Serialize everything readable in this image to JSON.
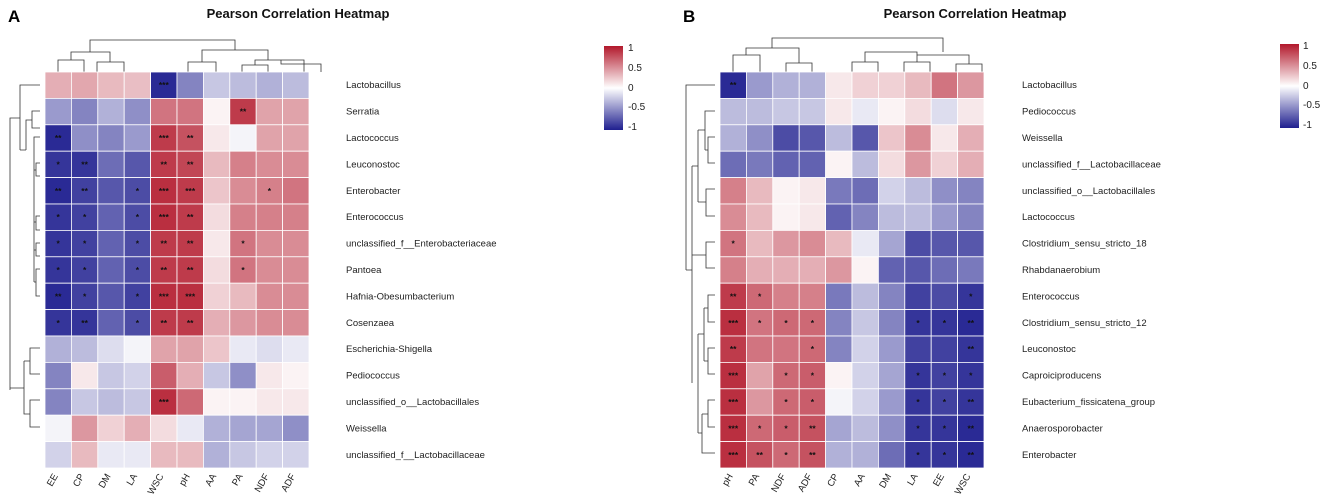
{
  "colors": {
    "low": "#1f1f8f",
    "mid": "#ffffff",
    "high": "#b2182b"
  },
  "chart_data": [
    {
      "type": "heatmap",
      "panel_label": "A",
      "title": "Pearson Correlation Heatmap",
      "columns": [
        "EE",
        "CP",
        "DM",
        "LA",
        "WSC",
        "pH",
        "AA",
        "PA",
        "NDF",
        "ADF"
      ],
      "rows": [
        "Lactobacillus",
        "Serratia",
        "Lactococcus",
        "Leuconostoc",
        "Enterobacter",
        "Enterococcus",
        "unclassified_f__Enterobacteriaceae",
        "Pantoea",
        "Hafnia-Obesumbacterium",
        "Cosenzaea",
        "Escherichia-Shigella",
        "Pediococcus",
        "unclassified_o__Lactobacillales",
        "Weissella",
        "unclassified_f__Lactobacillaceae"
      ],
      "values": [
        [
          0.35,
          0.38,
          0.3,
          0.28,
          -0.95,
          -0.55,
          -0.25,
          -0.3,
          -0.35,
          -0.3
        ],
        [
          -0.45,
          -0.55,
          -0.35,
          -0.5,
          0.6,
          0.6,
          0.05,
          0.85,
          0.4,
          0.4
        ],
        [
          -0.95,
          -0.5,
          -0.55,
          -0.45,
          0.85,
          0.75,
          0.1,
          -0.05,
          0.4,
          0.4
        ],
        [
          -0.9,
          -0.9,
          -0.65,
          -0.75,
          0.85,
          0.8,
          0.3,
          0.55,
          0.5,
          0.5
        ],
        [
          -0.95,
          -0.85,
          -0.75,
          -0.8,
          0.9,
          0.85,
          0.25,
          0.5,
          0.55,
          0.6
        ],
        [
          -0.9,
          -0.85,
          -0.7,
          -0.8,
          0.9,
          0.85,
          0.15,
          0.55,
          0.55,
          0.55
        ],
        [
          -0.9,
          -0.85,
          -0.7,
          -0.8,
          0.85,
          0.85,
          0.1,
          0.6,
          0.5,
          0.5
        ],
        [
          -0.9,
          -0.85,
          -0.7,
          -0.8,
          0.85,
          0.85,
          0.15,
          0.6,
          0.5,
          0.5
        ],
        [
          -0.95,
          -0.85,
          -0.75,
          -0.85,
          0.9,
          0.9,
          0.2,
          0.3,
          0.5,
          0.5
        ],
        [
          -0.9,
          -0.9,
          -0.7,
          -0.8,
          0.85,
          0.85,
          0.35,
          0.45,
          0.5,
          0.5
        ],
        [
          -0.35,
          -0.3,
          -0.15,
          -0.05,
          0.4,
          0.4,
          0.25,
          -0.1,
          -0.15,
          -0.1
        ],
        [
          -0.55,
          0.1,
          -0.25,
          -0.2,
          0.7,
          0.35,
          -0.25,
          -0.5,
          0.1,
          0.05
        ],
        [
          -0.55,
          -0.25,
          -0.3,
          -0.25,
          0.9,
          0.65,
          0.05,
          0.05,
          0.1,
          0.1
        ],
        [
          -0.05,
          0.45,
          0.2,
          0.35,
          0.15,
          -0.1,
          -0.35,
          -0.4,
          -0.4,
          -0.5
        ],
        [
          -0.2,
          0.3,
          -0.1,
          -0.1,
          0.3,
          0.3,
          -0.35,
          -0.25,
          -0.2,
          -0.2
        ]
      ],
      "stars": [
        [
          "",
          "",
          "",
          "",
          "***",
          "",
          "",
          "",
          "",
          ""
        ],
        [
          "",
          "",
          "",
          "",
          "",
          "",
          "",
          "**",
          "",
          ""
        ],
        [
          "**",
          "",
          "",
          "",
          "***",
          "**",
          "",
          "",
          "",
          ""
        ],
        [
          "*",
          "**",
          "",
          "",
          "**",
          "**",
          "",
          "",
          "",
          ""
        ],
        [
          "**",
          "**",
          "",
          "*",
          "***",
          "***",
          "",
          "",
          "*",
          ""
        ],
        [
          "*",
          "*",
          "",
          "*",
          "***",
          "**",
          "",
          "",
          "",
          ""
        ],
        [
          "*",
          "*",
          "",
          "*",
          "**",
          "**",
          "",
          "*",
          "",
          ""
        ],
        [
          "*",
          "*",
          "",
          "*",
          "**",
          "**",
          "",
          "*",
          "",
          ""
        ],
        [
          "**",
          "*",
          "",
          "*",
          "***",
          "***",
          "",
          "",
          "",
          ""
        ],
        [
          "*",
          "**",
          "",
          "*",
          "**",
          "**",
          "",
          "",
          "",
          ""
        ],
        [
          "",
          "",
          "",
          "",
          "",
          "",
          "",
          "",
          "",
          ""
        ],
        [
          "",
          "",
          "",
          "",
          "",
          "",
          "",
          "",
          "",
          ""
        ],
        [
          "",
          "",
          "",
          "",
          "***",
          "",
          "",
          "",
          "",
          ""
        ],
        [
          "",
          "",
          "",
          "",
          "",
          "",
          "",
          "",
          "",
          ""
        ],
        [
          "",
          "",
          "",
          "",
          "",
          "",
          "",
          "",
          "",
          ""
        ]
      ],
      "legend": {
        "ticks": [
          "1",
          "0.5",
          "0",
          "-0.5",
          "-1"
        ],
        "range": [
          -1,
          1
        ]
      }
    },
    {
      "type": "heatmap",
      "panel_label": "B",
      "title": "Pearson Correlation Heatmap",
      "columns": [
        "pH",
        "PA",
        "NDF",
        "ADF",
        "CP",
        "AA",
        "DM",
        "LA",
        "EE",
        "WSC"
      ],
      "rows": [
        "Lactobacillus",
        "Pediococcus",
        "Weissella",
        "unclassified_f__Lactobacillaceae",
        "unclassified_o__Lactobacillales",
        "Lactococcus",
        "Clostridium_sensu_stricto_18",
        "Rhabdanaerobium",
        "Enterococcus",
        "Clostridium_sensu_stricto_12",
        "Leuconostoc",
        "Caproiciproducens",
        "Eubacterium_fissicatena_group",
        "Anaerosporobacter",
        "Enterobacter"
      ],
      "values": [
        [
          -0.95,
          -0.45,
          -0.35,
          -0.35,
          0.1,
          0.2,
          0.2,
          0.3,
          0.6,
          0.45
        ],
        [
          -0.3,
          -0.3,
          -0.25,
          -0.25,
          0.1,
          -0.1,
          0.05,
          0.15,
          -0.15,
          0.1
        ],
        [
          -0.35,
          -0.5,
          -0.8,
          -0.75,
          -0.3,
          -0.75,
          0.25,
          0.5,
          0.1,
          0.35
        ],
        [
          -0.65,
          -0.6,
          -0.7,
          -0.7,
          0.05,
          -0.3,
          0.15,
          0.45,
          0.2,
          0.35
        ],
        [
          0.55,
          0.3,
          0.05,
          0.1,
          -0.6,
          -0.65,
          -0.2,
          -0.3,
          -0.5,
          -0.55
        ],
        [
          0.5,
          0.3,
          0.05,
          0.1,
          -0.7,
          -0.55,
          -0.3,
          -0.3,
          -0.45,
          -0.55
        ],
        [
          0.6,
          0.3,
          0.45,
          0.5,
          0.3,
          -0.1,
          -0.4,
          -0.8,
          -0.75,
          -0.75
        ],
        [
          0.55,
          0.35,
          0.35,
          0.35,
          0.45,
          0.05,
          -0.7,
          -0.75,
          -0.65,
          -0.6
        ],
        [
          0.85,
          0.65,
          0.55,
          0.55,
          -0.6,
          -0.3,
          -0.55,
          -0.85,
          -0.8,
          -0.9
        ],
        [
          0.9,
          0.6,
          0.65,
          0.65,
          -0.55,
          -0.25,
          -0.55,
          -0.9,
          -0.9,
          -0.95
        ],
        [
          0.85,
          0.6,
          0.6,
          0.65,
          -0.55,
          -0.2,
          -0.45,
          -0.85,
          -0.85,
          -0.9
        ],
        [
          0.9,
          0.4,
          0.65,
          0.7,
          0.05,
          -0.2,
          -0.4,
          -0.9,
          -0.85,
          -0.9
        ],
        [
          0.9,
          0.45,
          0.65,
          0.7,
          -0.05,
          -0.2,
          -0.45,
          -0.9,
          -0.85,
          -0.9
        ],
        [
          0.9,
          0.65,
          0.7,
          0.75,
          -0.4,
          -0.3,
          -0.5,
          -0.9,
          -0.9,
          -0.95
        ],
        [
          0.9,
          0.75,
          0.65,
          0.75,
          -0.35,
          -0.35,
          -0.65,
          -0.9,
          -0.9,
          -0.95
        ]
      ],
      "stars": [
        [
          "**",
          "",
          "",
          "",
          "",
          "",
          "",
          "",
          "",
          ""
        ],
        [
          "",
          "",
          "",
          "",
          "",
          "",
          "",
          "",
          "",
          ""
        ],
        [
          "",
          "",
          "",
          "",
          "",
          "",
          "",
          "",
          "",
          ""
        ],
        [
          "",
          "",
          "",
          "",
          "",
          "",
          "",
          "",
          "",
          ""
        ],
        [
          "",
          "",
          "",
          "",
          "",
          "",
          "",
          "",
          "",
          ""
        ],
        [
          "",
          "",
          "",
          "",
          "",
          "",
          "",
          "",
          "",
          ""
        ],
        [
          "*",
          "",
          "",
          "",
          "",
          "",
          "",
          "",
          "",
          ""
        ],
        [
          "",
          "",
          "",
          "",
          "",
          "",
          "",
          "",
          "",
          ""
        ],
        [
          "**",
          "*",
          "",
          "",
          "",
          "",
          "",
          "",
          "",
          "*"
        ],
        [
          "***",
          "*",
          "*",
          "*",
          "",
          "",
          "",
          "*",
          "*",
          "**"
        ],
        [
          "**",
          "",
          "",
          "*",
          "",
          "",
          "",
          "",
          "",
          "**"
        ],
        [
          "***",
          "",
          "*",
          "*",
          "",
          "",
          "",
          "*",
          "*",
          "*"
        ],
        [
          "***",
          "",
          "*",
          "*",
          "",
          "",
          "",
          "*",
          "*",
          "**"
        ],
        [
          "***",
          "*",
          "*",
          "**",
          "",
          "",
          "",
          "*",
          "*",
          "**"
        ],
        [
          "***",
          "**",
          "*",
          "**",
          "",
          "",
          "",
          "*",
          "*",
          "**"
        ]
      ],
      "legend": {
        "ticks": [
          "1",
          "0.5",
          "0",
          "-0.5",
          "-1"
        ],
        "range": [
          -1,
          1
        ]
      }
    }
  ]
}
